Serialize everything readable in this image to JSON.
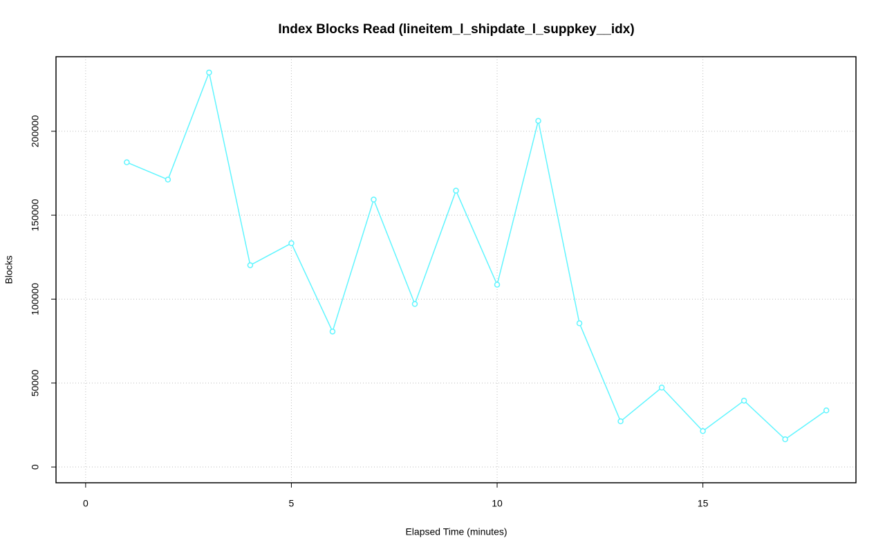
{
  "chart_data": {
    "type": "line",
    "title": "Index Blocks Read (lineitem_l_shipdate_l_suppkey__idx)",
    "x_label": "Elapsed Time (minutes)",
    "y_label": "Blocks",
    "x": [
      1,
      2,
      3,
      4,
      5,
      6,
      7,
      8,
      9,
      10,
      11,
      12,
      13,
      14,
      15,
      16,
      17,
      18
    ],
    "series": [
      {
        "color": "#5ff5ff",
        "values": [
          181500,
          171200,
          235000,
          120200,
          133300,
          80700,
          159300,
          97100,
          164600,
          108600,
          206200,
          85600,
          27200,
          47300,
          21400,
          39500,
          16500,
          33700
        ]
      }
    ],
    "xlim": [
      -0.72,
      18.72
    ],
    "xticks": [
      0,
      5,
      10,
      15
    ],
    "ylim": [
      -9400,
      244400
    ],
    "yticks": [
      0,
      50000,
      100000,
      150000,
      200000
    ],
    "grid": true
  }
}
